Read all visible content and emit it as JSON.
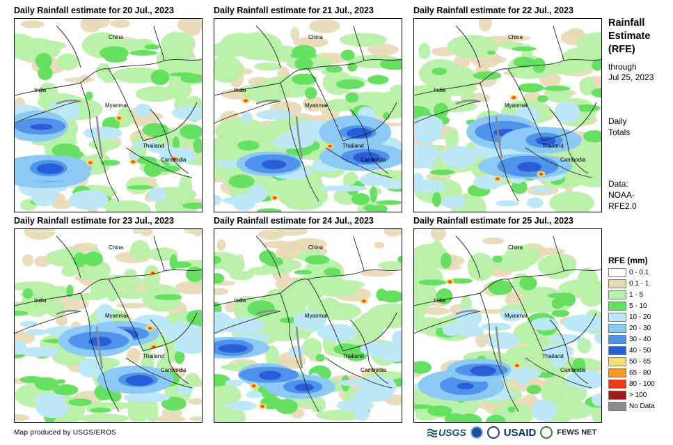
{
  "panels": [
    {
      "title": "Daily Rainfall estimate for 20 Jul., 2023",
      "labels": [
        "China",
        "India",
        "Myanmar",
        "Thailand",
        "Cambodia"
      ],
      "blue_zones": 3,
      "hot_spots": 4
    },
    {
      "title": "Daily Rainfall estimate for 21 Jul., 2023",
      "labels": [
        "China",
        "India",
        "Myanmar",
        "Thailand",
        "Cambodia"
      ],
      "blue_zones": 3,
      "hot_spots": 3
    },
    {
      "title": "Daily Rainfall estimate for 22 Jul., 2023",
      "labels": [
        "China",
        "India",
        "Myanmar",
        "Thailand",
        "Cambodia"
      ],
      "blue_zones": 3,
      "hot_spots": 3
    },
    {
      "title": "Daily Rainfall estimate for 23 Jul., 2023",
      "labels": [
        "China",
        "India",
        "Myanmar",
        "Thailand",
        "Cambodia"
      ],
      "blue_zones": 3,
      "hot_spots": 3
    },
    {
      "title": "Daily Rainfall estimate for 24 Jul., 2023",
      "labels": [
        "China",
        "India",
        "Myanmar",
        "Thailand",
        "Cambodia"
      ],
      "blue_zones": 3,
      "hot_spots": 3
    },
    {
      "title": "Daily Rainfall estimate for 25 Jul., 2023",
      "labels": [
        "China",
        "India",
        "Myanmar",
        "Thailand",
        "Cambodia"
      ],
      "blue_zones": 2,
      "hot_spots": 2
    }
  ],
  "side": {
    "title_lines": [
      "Rainfall",
      "Estimate",
      "(RFE)"
    ],
    "through": "through",
    "through_date": "Jul 25, 2023",
    "daily": "Daily",
    "totals": "Totals",
    "data_label": "Data:",
    "data_source_1": "NOAA-",
    "data_source_2": "RFE2.0"
  },
  "legend": {
    "title": "RFE (mm)",
    "items": [
      {
        "label": "0 - 0.1",
        "color": "#ffffff"
      },
      {
        "label": "0.1 - 1",
        "color": "#e8d9b5"
      },
      {
        "label": "1 - 5",
        "color": "#b8f0a8"
      },
      {
        "label": "5 - 10",
        "color": "#66e060"
      },
      {
        "label": "10 - 20",
        "color": "#bce8f7"
      },
      {
        "label": "20 - 30",
        "color": "#8ccaf5"
      },
      {
        "label": "30 - 40",
        "color": "#4f93ea"
      },
      {
        "label": "40 - 50",
        "color": "#2a5ed8"
      },
      {
        "label": "50 - 65",
        "color": "#f7e07a"
      },
      {
        "label": "65 - 80",
        "color": "#f59a1e"
      },
      {
        "label": "80 - 100",
        "color": "#f03a10"
      },
      {
        "label": "> 100",
        "color": "#a01818"
      },
      {
        "label": "No Data",
        "color": "#8c8c8c"
      }
    ]
  },
  "footer": "Map produced by USGS/EROS",
  "logos": {
    "usgs": "USGS",
    "usaid": "USAID",
    "fews": "FEWS NET"
  }
}
